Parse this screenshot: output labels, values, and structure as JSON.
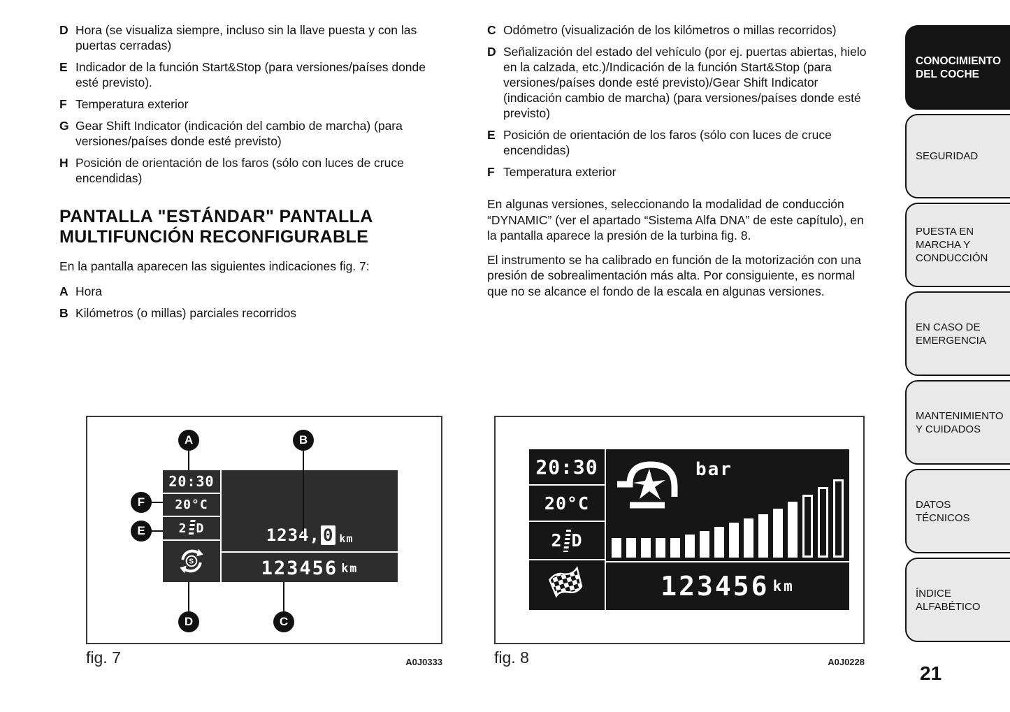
{
  "page": {
    "number": "21"
  },
  "left_column": {
    "items": [
      {
        "label": "D",
        "text": "Hora (se visualiza siempre, incluso sin la llave puesta y con las puertas cerradas)"
      },
      {
        "label": "E",
        "text": "Indicador de la función Start&Stop (para versiones/países donde esté previsto)."
      },
      {
        "label": "F",
        "text": "Temperatura exterior"
      },
      {
        "label": "G",
        "text": "Gear Shift Indicator (indicación del cambio de marcha) (para versiones/países donde esté previsto)"
      },
      {
        "label": "H",
        "text": "Posición de orientación de los faros (sólo con luces de cruce encendidas)"
      }
    ],
    "heading": "PANTALLA \"ESTÁNDAR\" PANTALLA MULTIFUNCIÓN RECONFIGURABLE",
    "intro": "En la pantalla aparecen las siguientes indicaciones fig. 7:",
    "items2": [
      {
        "label": "A",
        "text": "Hora"
      },
      {
        "label": "B",
        "text": "Kilómetros (o millas) parciales recorridos"
      }
    ]
  },
  "right_column": {
    "items": [
      {
        "label": "C",
        "text": "Odómetro (visualización de los kilómetros o millas recorridos)"
      },
      {
        "label": "D",
        "text": "Señalización del estado del vehículo (por ej. puertas abiertas, hielo en la calzada, etc.)/Indicación de la función Start&Stop (para versiones/países donde esté previsto)/Gear Shift Indicator (indicación cambio de marcha) (para versiones/países donde esté previsto)"
      },
      {
        "label": "E",
        "text": "Posición de orientación de los faros (sólo con luces de cruce encendidas)"
      },
      {
        "label": "F",
        "text": "Temperatura exterior"
      }
    ],
    "paragraphs": [
      "En algunas versiones, seleccionando la modalidad de conducción “DYNAMIC” (ver el apartado “Sistema Alfa DNA” de este capítulo), en la pantalla aparece la presión de la turbina fig. 8.",
      "El instrumento se ha calibrado en función de la motorización con una presión de sobrealimentación más alta. Por consiguiente, es normal que no se alcance el fondo de la escala en algunas versiones."
    ]
  },
  "fig7": {
    "caption": "fig. 7",
    "code": "A0J0333",
    "display": {
      "time": "20:30",
      "temperature": "20°C",
      "headlight_level": "2",
      "headlight_letter": "D",
      "trip_value": "1234,",
      "trip_last_digit": "0",
      "trip_unit": "km",
      "odometer": "123456",
      "odometer_unit": "km",
      "startstop_letter": "S"
    },
    "callouts": {
      "a": "A",
      "b": "B",
      "c": "C",
      "d": "D",
      "e": "E",
      "f": "F"
    }
  },
  "fig8": {
    "caption": "fig. 8",
    "code": "A0J0228",
    "display": {
      "time": "20:30",
      "temperature": "20°C",
      "headlight_level": "2",
      "headlight_letter": "D",
      "pressure_unit": "bar",
      "odometer": "123456",
      "odometer_unit": "km"
    },
    "bars": {
      "solid": [
        28,
        28,
        28,
        28,
        28,
        33,
        38,
        44,
        50,
        56,
        62,
        70,
        80
      ],
      "hollow": [
        90,
        101,
        112
      ]
    }
  },
  "sidebar": {
    "tabs": [
      {
        "label": "CONOCIMIENTO DEL COCHE",
        "active": true
      },
      {
        "label": "SEGURIDAD",
        "active": false
      },
      {
        "label": "PUESTA EN MARCHA Y CONDUCCIÓN",
        "active": false
      },
      {
        "label": "EN CASO DE EMERGENCIA",
        "active": false
      },
      {
        "label": "MANTENIMIENTO Y CUIDADOS",
        "active": false
      },
      {
        "label": "DATOS TÉCNICOS",
        "active": false
      },
      {
        "label": "ÍNDICE ALFABÉTICO",
        "active": false
      }
    ]
  },
  "colors": {
    "ink": "#141414",
    "tab_gray": "#e9e9e9",
    "lcd7_bg": "#2d2d2d",
    "lcd8_bg": "#161616"
  }
}
